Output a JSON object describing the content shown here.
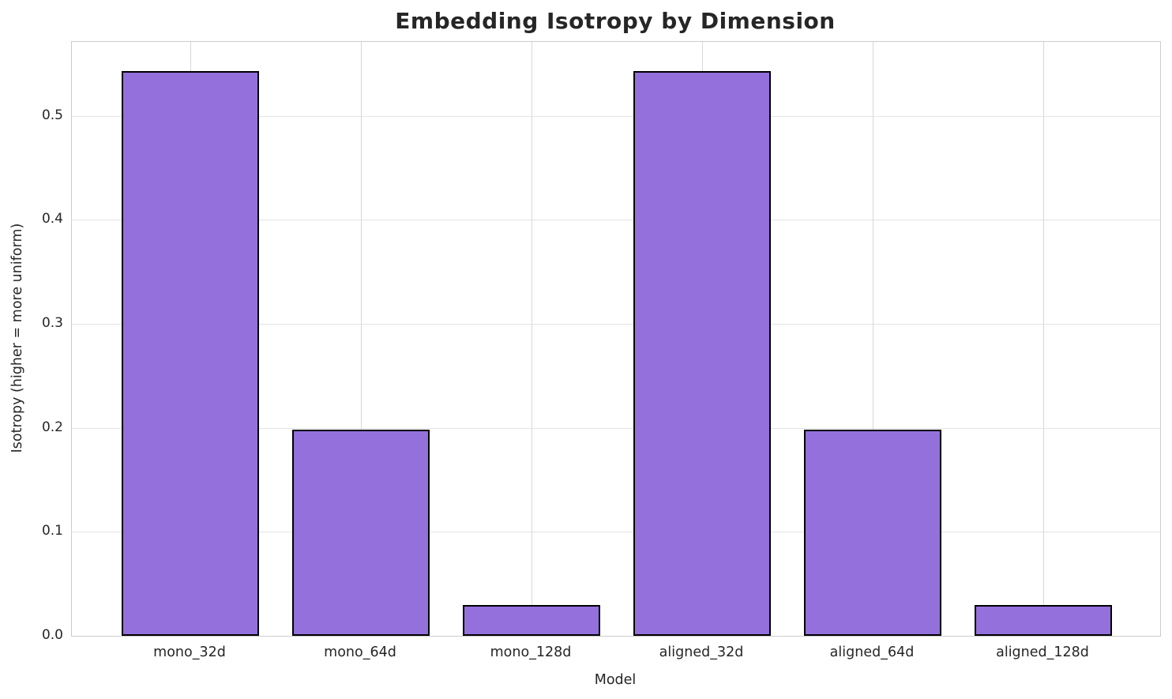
{
  "chart_data": {
    "type": "bar",
    "title": "Embedding Isotropy by Dimension",
    "xlabel": "Model",
    "ylabel": "Isotropy (higher = more uniform)",
    "categories": [
      "mono_32d",
      "mono_64d",
      "mono_128d",
      "aligned_32d",
      "aligned_64d",
      "aligned_128d"
    ],
    "values": [
      0.543,
      0.198,
      0.03,
      0.543,
      0.198,
      0.03
    ],
    "yticks": [
      0.0,
      0.1,
      0.2,
      0.3,
      0.4,
      0.5
    ],
    "ytick_labels": [
      "0.0",
      "0.1",
      "0.2",
      "0.3",
      "0.4",
      "0.5"
    ],
    "ylim": [
      0,
      0.571
    ],
    "grid": true,
    "legend": "none",
    "bar_color": "#9370DB",
    "bar_edge_color": "#000000"
  }
}
